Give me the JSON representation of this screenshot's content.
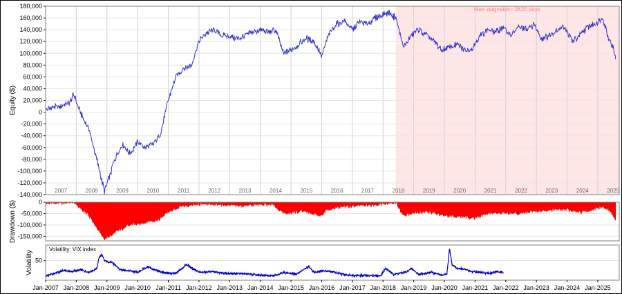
{
  "chart_data": [
    {
      "type": "line",
      "panel": "equity",
      "ylabel": "Equity ($)",
      "ylim": [
        -140000,
        180000
      ],
      "y_ticks": [
        "180,000",
        "160,000",
        "140,000",
        "120,000",
        "100,000",
        "80,000",
        "60,000",
        "40,000",
        "20,000",
        "0",
        "-20,000",
        "-40,000",
        "-60,000",
        "-80,000",
        "-100,000",
        "-120,000",
        "-140,000"
      ],
      "year_labels": [
        "2007",
        "2008",
        "2009",
        "2010",
        "2011",
        "2012",
        "2013",
        "2014",
        "2015",
        "2016",
        "2017",
        "2018",
        "2019",
        "2020",
        "2021",
        "2022",
        "2023",
        "2024",
        "2025"
      ],
      "grid": true,
      "annotation": "Max stagnation: 2630 days",
      "stagnation_start": "2018-06",
      "stagnation_end": "2025-08",
      "series": [
        {
          "color": "#3333cc",
          "x": [
            "2007-01",
            "2007-04",
            "2007-07",
            "2007-10",
            "2007-12",
            "2008-03",
            "2008-06",
            "2008-09",
            "2008-12",
            "2009-02",
            "2009-04",
            "2009-07",
            "2009-10",
            "2010-01",
            "2010-04",
            "2010-07",
            "2010-10",
            "2011-01",
            "2011-04",
            "2011-07",
            "2011-10",
            "2012-01",
            "2012-04",
            "2012-07",
            "2012-10",
            "2013-01",
            "2013-04",
            "2013-07",
            "2013-10",
            "2014-01",
            "2014-04",
            "2014-07",
            "2014-10",
            "2015-01",
            "2015-04",
            "2015-07",
            "2015-10",
            "2016-01",
            "2016-04",
            "2016-07",
            "2016-10",
            "2017-01",
            "2017-04",
            "2017-07",
            "2017-10",
            "2018-01",
            "2018-03",
            "2018-06",
            "2018-09",
            "2018-12",
            "2019-03",
            "2019-06",
            "2019-09",
            "2019-12",
            "2020-03",
            "2020-06",
            "2020-09",
            "2020-12",
            "2021-03",
            "2021-06",
            "2021-09",
            "2021-12",
            "2022-03",
            "2022-06",
            "2022-09",
            "2022-12",
            "2023-03",
            "2023-06",
            "2023-09",
            "2023-12",
            "2024-03",
            "2024-06",
            "2024-09",
            "2024-12",
            "2025-03",
            "2025-05",
            "2025-07",
            "2025-08"
          ],
          "values": [
            5000,
            8000,
            10000,
            15000,
            30000,
            -5000,
            -30000,
            -80000,
            -135000,
            -110000,
            -80000,
            -55000,
            -70000,
            -50000,
            -60000,
            -55000,
            -35000,
            20000,
            60000,
            75000,
            80000,
            120000,
            135000,
            140000,
            130000,
            130000,
            125000,
            130000,
            135000,
            140000,
            135000,
            140000,
            100000,
            105000,
            115000,
            125000,
            120000,
            95000,
            135000,
            150000,
            155000,
            140000,
            155000,
            150000,
            160000,
            165000,
            170000,
            160000,
            110000,
            130000,
            140000,
            130000,
            120000,
            105000,
            110000,
            115000,
            105000,
            110000,
            130000,
            140000,
            135000,
            145000,
            130000,
            145000,
            140000,
            150000,
            125000,
            130000,
            140000,
            145000,
            120000,
            130000,
            145000,
            150000,
            160000,
            130000,
            110000,
            90000
          ]
        }
      ]
    },
    {
      "type": "area",
      "panel": "drawdown",
      "ylabel": "Drawdown ($)",
      "ylim": [
        -170000,
        0
      ],
      "y_ticks": [
        "0",
        "-50,000",
        "-100,000",
        "-150,000"
      ],
      "series": [
        {
          "color": "#ff0000",
          "x": [
            "2007-01",
            "2007-09",
            "2007-12",
            "2008-03",
            "2008-06",
            "2008-09",
            "2008-12",
            "2009-02",
            "2009-06",
            "2009-10",
            "2010-03",
            "2010-09",
            "2011-01",
            "2011-06",
            "2011-12",
            "2012-06",
            "2012-12",
            "2013-06",
            "2013-12",
            "2014-06",
            "2014-09",
            "2014-11",
            "2015-06",
            "2016-01",
            "2016-03",
            "2016-09",
            "2017-03",
            "2017-09",
            "2018-01",
            "2018-06",
            "2018-09",
            "2019-01",
            "2019-06",
            "2019-12",
            "2020-03",
            "2020-09",
            "2021-01",
            "2021-06",
            "2021-12",
            "2022-06",
            "2022-12",
            "2023-06",
            "2023-12",
            "2024-06",
            "2024-12",
            "2025-03",
            "2025-06",
            "2025-08"
          ],
          "values": [
            -5000,
            -2000,
            0,
            -30000,
            -60000,
            -110000,
            -160000,
            -150000,
            -120000,
            -100000,
            -90000,
            -80000,
            -40000,
            -20000,
            -10000,
            -8000,
            -12000,
            -15000,
            -10000,
            -8000,
            -40000,
            -50000,
            -40000,
            -60000,
            -30000,
            -20000,
            -15000,
            -12000,
            -5000,
            -3000,
            -60000,
            -45000,
            -40000,
            -55000,
            -60000,
            -65000,
            -70000,
            -50000,
            -45000,
            -50000,
            -40000,
            -35000,
            -30000,
            -45000,
            -30000,
            -20000,
            -40000,
            -80000
          ]
        }
      ]
    },
    {
      "type": "line",
      "panel": "volatility",
      "ylabel": "Volatility",
      "legend": "Volatility: VIX index",
      "legend_position": "top-left",
      "ylim": [
        0,
        90
      ],
      "y_ticks": [
        "50"
      ],
      "x_tick_labels": [
        "Jan-2007",
        "Jan-2008",
        "Jan-2009",
        "Jan-2010",
        "Jan-2011",
        "Jan-2012",
        "Jan-2013",
        "Jan-2014",
        "Jan-2015",
        "Jan-2016",
        "Jan-2017",
        "Jan-2018",
        "Jan-2019",
        "Jan-2020",
        "Jan-2021",
        "Jan-2022",
        "Jan-2023",
        "Jan-2024",
        "Jan-2025"
      ],
      "series": [
        {
          "name": "Volatility: VIX index",
          "color": "#0000cc",
          "x": [
            "2007-01",
            "2007-03",
            "2007-08",
            "2007-11",
            "2008-03",
            "2008-06",
            "2008-09",
            "2008-10",
            "2008-11",
            "2008-12",
            "2009-03",
            "2009-06",
            "2009-09",
            "2010-01",
            "2010-05",
            "2010-08",
            "2010-12",
            "2011-04",
            "2011-08",
            "2011-10",
            "2012-01",
            "2012-06",
            "2012-12",
            "2013-06",
            "2013-12",
            "2014-06",
            "2014-10",
            "2015-03",
            "2015-08",
            "2015-10",
            "2016-02",
            "2016-06",
            "2016-10",
            "2017-03",
            "2017-08",
            "2017-12",
            "2018-02",
            "2018-05",
            "2018-10",
            "2018-12",
            "2019-03",
            "2019-08",
            "2019-12",
            "2020-02",
            "2020-03",
            "2020-04",
            "2020-06",
            "2020-09",
            "2020-12",
            "2021-03",
            "2021-06",
            "2021-09",
            "2021-12"
          ],
          "values": [
            11,
            14,
            25,
            22,
            26,
            20,
            30,
            60,
            65,
            50,
            45,
            28,
            25,
            20,
            35,
            25,
            18,
            17,
            40,
            32,
            20,
            22,
            17,
            17,
            13,
            11,
            20,
            15,
            35,
            20,
            25,
            20,
            14,
            12,
            12,
            11,
            30,
            15,
            20,
            30,
            15,
            20,
            13,
            15,
            82,
            40,
            30,
            28,
            22,
            20,
            17,
            21,
            20
          ]
        }
      ]
    }
  ]
}
